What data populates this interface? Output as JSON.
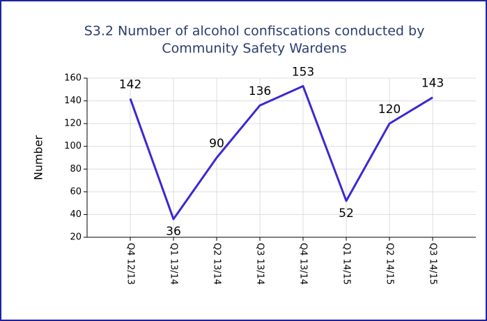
{
  "chart_data": {
    "type": "line",
    "title": [
      "S3.2 Number of alcohol confiscations conducted by",
      "Community Safety Wardens"
    ],
    "y_label": "Number",
    "categories": [
      "Q4 12/13",
      "Q1 13/14",
      "Q2 13/14",
      "Q3 13/14",
      "Q4 13/14",
      "Q1 14/15",
      "Q2 14/15",
      "Q3 14/15"
    ],
    "series": [
      {
        "name": "Number",
        "color": "#3a28d4",
        "values": [
          142,
          36,
          90,
          136,
          153,
          52,
          120,
          143
        ]
      }
    ],
    "ylim": [
      20,
      160
    ],
    "yticks": [
      20,
      40,
      60,
      80,
      100,
      120,
      140,
      160
    ],
    "grid": true
  }
}
